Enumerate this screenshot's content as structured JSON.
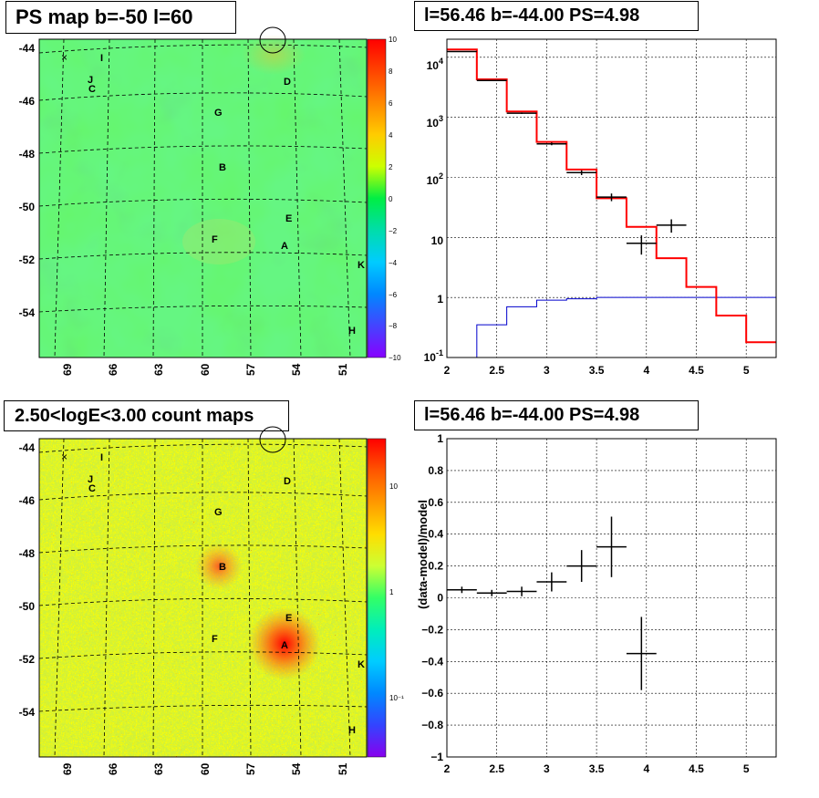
{
  "panels": [
    {
      "id": "tl",
      "title": "PS map b=-50 l=60"
    },
    {
      "id": "tr",
      "title": "l=56.46 b=-44.00 PS=4.98"
    },
    {
      "id": "bl",
      "title": "2.50<logE<3.00 count maps"
    },
    {
      "id": "br",
      "title": "l=56.46 b=-44.00 PS=4.98"
    }
  ],
  "map_axes": {
    "y_ticks": [
      "-44",
      "-46",
      "-48",
      "-50",
      "-52",
      "-54"
    ],
    "x_ticks": [
      "69",
      "66",
      "63",
      "60",
      "57",
      "54",
      "51"
    ]
  },
  "sources": [
    {
      "label": "I"
    },
    {
      "label": "J"
    },
    {
      "label": "C"
    },
    {
      "label": "D"
    },
    {
      "label": "G"
    },
    {
      "label": "B"
    },
    {
      "label": "E"
    },
    {
      "label": "F"
    },
    {
      "label": "A"
    },
    {
      "label": "K"
    },
    {
      "label": "H"
    }
  ],
  "source_marker_x": "×",
  "ps_colorbar_ticks": [
    "10",
    "8",
    "6",
    "4",
    "2",
    "0",
    "−2",
    "−4",
    "−6",
    "−8",
    "−10"
  ],
  "count_colorbar_ticks": [
    "10",
    "1",
    "10⁻¹"
  ],
  "colors": {
    "ps_bg": "#4cf24c",
    "hist_data": "#000000",
    "hist_model": "#ff0000",
    "hist_other": "#0000cc"
  },
  "chart_data": [
    {
      "type": "heatmap",
      "title": "PS map b=-50 l=60",
      "xlabel": "",
      "ylabel": "",
      "zlim": [
        -10,
        10
      ],
      "grid": true
    },
    {
      "type": "line",
      "title": "l=56.46 b=-44.00 PS=4.98",
      "x_ticks": [
        "2",
        "2.5",
        "3",
        "3.5",
        "4",
        "4.5",
        "5"
      ],
      "y_ticks": [
        "10",
        "1"
      ],
      "y_ticks_pow": [
        {
          "base": "10",
          "exp": "4"
        },
        {
          "base": "10",
          "exp": "3"
        },
        {
          "base": "10",
          "exp": "2"
        },
        {
          "base": "10",
          "exp": "-1"
        }
      ],
      "xlim": [
        2.0,
        5.3
      ],
      "ylim": [
        0.1,
        20000
      ],
      "y_scale": "log",
      "bin_edges": [
        2.0,
        2.3,
        2.6,
        2.9,
        3.2,
        3.5,
        3.8,
        4.1,
        4.4,
        4.7,
        5.0,
        5.3
      ],
      "series": [
        {
          "values": [
            12500,
            4100,
            1170,
            362,
            120,
            47,
            8,
            16
          ]
        },
        {
          "values": [
            13500,
            4300,
            1250,
            390,
            135,
            45,
            15,
            4.5,
            1.5,
            0.5,
            0.18
          ]
        },
        {
          "values": [
            0.1,
            0.35,
            0.7,
            0.9,
            0.95,
            1,
            1,
            1,
            1,
            1,
            1
          ]
        }
      ],
      "grid": true
    },
    {
      "type": "heatmap",
      "title": "2.50<logE<3.00 count maps",
      "xlabel": "",
      "ylabel": "",
      "z_scale": "log",
      "grid": true
    },
    {
      "type": "scatter",
      "title": "l=56.46 b=-44.00 PS=4.98",
      "ylabel": "(data-model)/model",
      "x_ticks": [
        "2",
        "2.5",
        "3",
        "3.5",
        "4",
        "4.5",
        "5"
      ],
      "y_ticks": [
        "1",
        "0.8",
        "0.6",
        "0.4",
        "0.2",
        "0",
        "−0.2",
        "−0.4",
        "−0.6",
        "−0.8",
        "−1"
      ],
      "xlim": [
        2.0,
        5.3
      ],
      "ylim": [
        -1,
        1
      ],
      "points": [
        {
          "x": 2.15,
          "y": 0.05,
          "yerr": 0.02,
          "xerr": 0.15
        },
        {
          "x": 2.45,
          "y": 0.03,
          "yerr": 0.02,
          "xerr": 0.15
        },
        {
          "x": 2.75,
          "y": 0.04,
          "yerr": 0.03,
          "xerr": 0.15
        },
        {
          "x": 3.05,
          "y": 0.1,
          "yerr": 0.06,
          "xerr": 0.15
        },
        {
          "x": 3.35,
          "y": 0.2,
          "yerr": 0.1,
          "xerr": 0.15
        },
        {
          "x": 3.65,
          "y": 0.32,
          "yerr": 0.19,
          "xerr": 0.15
        },
        {
          "x": 3.95,
          "y": -0.35,
          "yerr": 0.23,
          "xerr": 0.15
        }
      ],
      "grid": true
    }
  ]
}
